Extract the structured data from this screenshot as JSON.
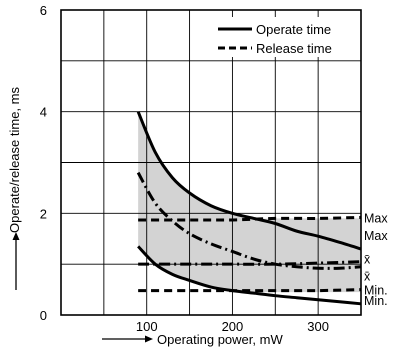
{
  "chart_data": {
    "type": "line",
    "title": "",
    "xlabel": "Operating power, mW",
    "ylabel": "Operate/release time, ms",
    "xlim": [
      0,
      350
    ],
    "ylim": [
      0,
      6
    ],
    "x_ticks": [
      100,
      200,
      300
    ],
    "y_ticks": [
      0,
      2,
      4,
      6
    ],
    "grid": true,
    "legend_position": "top-right",
    "legend": [
      {
        "label": "Operate time",
        "style": "solid"
      },
      {
        "label": "Release time",
        "style": "dashed"
      }
    ],
    "shaded_band": {
      "x_start": 90,
      "color": "#d3d3d3",
      "upper": [
        [
          90,
          4.0
        ],
        [
          110,
          3.2
        ],
        [
          130,
          2.7
        ],
        [
          150,
          2.4
        ],
        [
          175,
          2.15
        ],
        [
          200,
          2.0
        ],
        [
          225,
          1.9
        ],
        [
          250,
          1.9
        ],
        [
          275,
          1.9
        ],
        [
          300,
          1.9
        ],
        [
          325,
          1.9
        ],
        [
          350,
          1.9
        ]
      ],
      "lower": [
        [
          90,
          1.35
        ],
        [
          110,
          1.0
        ],
        [
          130,
          0.8
        ],
        [
          150,
          0.68
        ],
        [
          175,
          0.55
        ],
        [
          200,
          0.48
        ],
        [
          225,
          0.45
        ],
        [
          250,
          0.45
        ],
        [
          275,
          0.45
        ],
        [
          300,
          0.45
        ],
        [
          325,
          0.45
        ],
        [
          350,
          0.45
        ]
      ]
    },
    "series": [
      {
        "name": "Operate time",
        "label": "Max",
        "style": "solid",
        "points": [
          [
            90,
            4.0
          ],
          [
            110,
            3.2
          ],
          [
            130,
            2.7
          ],
          [
            150,
            2.4
          ],
          [
            175,
            2.15
          ],
          [
            200,
            2.0
          ],
          [
            225,
            1.9
          ],
          [
            250,
            1.8
          ],
          [
            275,
            1.65
          ],
          [
            300,
            1.55
          ],
          [
            325,
            1.43
          ],
          [
            350,
            1.3
          ]
        ]
      },
      {
        "name": "Release time",
        "label": "Max",
        "style": "dashed",
        "points": [
          [
            90,
            1.87
          ],
          [
            150,
            1.87
          ],
          [
            200,
            1.87
          ],
          [
            250,
            1.9
          ],
          [
            300,
            1.9
          ],
          [
            350,
            1.92
          ]
        ]
      },
      {
        "name": "Operate time",
        "label": "x̄",
        "style": "dash-dot",
        "points": [
          [
            90,
            2.8
          ],
          [
            110,
            2.2
          ],
          [
            130,
            1.85
          ],
          [
            150,
            1.6
          ],
          [
            175,
            1.4
          ],
          [
            200,
            1.25
          ],
          [
            225,
            1.1
          ],
          [
            250,
            1.0
          ],
          [
            275,
            0.95
          ],
          [
            300,
            0.92
          ],
          [
            325,
            0.92
          ],
          [
            350,
            0.95
          ]
        ]
      },
      {
        "name": "Release time",
        "label": "x̄",
        "style": "dash-dot",
        "points": [
          [
            90,
            1.0
          ],
          [
            150,
            1.0
          ],
          [
            200,
            1.0
          ],
          [
            250,
            1.0
          ],
          [
            300,
            1.02
          ],
          [
            350,
            1.05
          ]
        ]
      },
      {
        "name": "Release time",
        "label": "Min.",
        "style": "dashed",
        "points": [
          [
            90,
            0.48
          ],
          [
            150,
            0.48
          ],
          [
            200,
            0.48
          ],
          [
            250,
            0.48
          ],
          [
            300,
            0.48
          ],
          [
            350,
            0.5
          ]
        ]
      },
      {
        "name": "Operate time",
        "label": "Min.",
        "style": "solid",
        "points": [
          [
            90,
            1.35
          ],
          [
            110,
            1.0
          ],
          [
            130,
            0.8
          ],
          [
            150,
            0.68
          ],
          [
            175,
            0.55
          ],
          [
            200,
            0.48
          ],
          [
            225,
            0.43
          ],
          [
            250,
            0.38
          ],
          [
            275,
            0.34
          ],
          [
            300,
            0.3
          ],
          [
            325,
            0.26
          ],
          [
            350,
            0.22
          ]
        ]
      }
    ],
    "right_labels": [
      "Max",
      "Max",
      "x̄",
      "x̄",
      "Min.",
      "Min."
    ]
  }
}
